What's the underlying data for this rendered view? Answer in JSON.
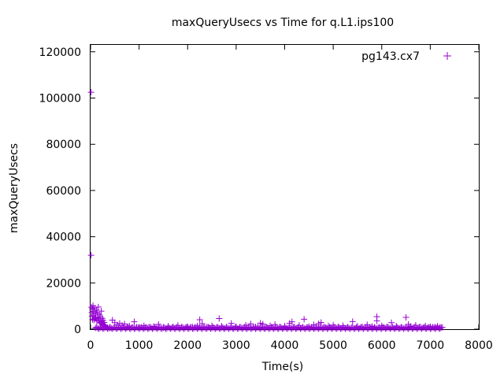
{
  "chart_data": {
    "type": "scatter",
    "title": "maxQueryUsecs vs Time for q.L1.ips100",
    "xlabel": "Time(s)",
    "ylabel": "maxQueryUsecs",
    "xlim": [
      0,
      8000
    ],
    "ylim": [
      0,
      123000
    ],
    "xticks": [
      0,
      1000,
      2000,
      3000,
      4000,
      5000,
      6000,
      7000,
      8000
    ],
    "yticks": [
      0,
      20000,
      40000,
      60000,
      80000,
      100000,
      120000
    ],
    "legend_position": "top-right",
    "marker": "+",
    "series": [
      {
        "name": "pg143.cx7",
        "color": "#9400d3",
        "points": [
          [
            10,
            102500
          ],
          [
            10,
            32000
          ],
          [
            20,
            9500
          ],
          [
            25,
            7200
          ],
          [
            30,
            5600
          ],
          [
            35,
            8800
          ],
          [
            40,
            4200
          ],
          [
            50,
            10200
          ],
          [
            55,
            6100
          ],
          [
            60,
            7700
          ],
          [
            70,
            3900
          ],
          [
            80,
            9100
          ],
          [
            90,
            5200
          ],
          [
            100,
            6800
          ],
          [
            110,
            4600
          ],
          [
            120,
            8300
          ],
          [
            130,
            3500
          ],
          [
            140,
            7100
          ],
          [
            150,
            5000
          ],
          [
            160,
            9600
          ],
          [
            170,
            4100
          ],
          [
            180,
            6200
          ],
          [
            190,
            3000
          ],
          [
            200,
            5400
          ],
          [
            210,
            2600
          ],
          [
            220,
            7800
          ],
          [
            230,
            3300
          ],
          [
            240,
            4700
          ],
          [
            250,
            2200
          ],
          [
            260,
            3800
          ],
          [
            270,
            1800
          ],
          [
            280,
            2900
          ],
          [
            290,
            1500
          ],
          [
            300,
            1200
          ],
          [
            320,
            900
          ],
          [
            350,
            700
          ],
          [
            400,
            600
          ],
          [
            450,
            3900
          ],
          [
            500,
            2800
          ],
          [
            550,
            1900
          ],
          [
            600,
            2500
          ],
          [
            650,
            1600
          ],
          [
            700,
            2300
          ],
          [
            750,
            900
          ],
          [
            800,
            1400
          ],
          [
            900,
            3200
          ],
          [
            1000,
            800
          ],
          [
            1100,
            1500
          ],
          [
            1200,
            900
          ],
          [
            1300,
            1200
          ],
          [
            1400,
            2100
          ],
          [
            1500,
            700
          ],
          [
            1600,
            1300
          ],
          [
            1700,
            1000
          ],
          [
            1800,
            1600
          ],
          [
            1900,
            800
          ],
          [
            2000,
            1100
          ],
          [
            2100,
            900
          ],
          [
            2200,
            1400
          ],
          [
            2250,
            4100
          ],
          [
            2300,
            2400
          ],
          [
            2400,
            1000
          ],
          [
            2500,
            1500
          ],
          [
            2600,
            800
          ],
          [
            2650,
            4600
          ],
          [
            2700,
            1300
          ],
          [
            2800,
            900
          ],
          [
            2900,
            2500
          ],
          [
            3000,
            1100
          ],
          [
            3100,
            800
          ],
          [
            3200,
            1700
          ],
          [
            3300,
            2300
          ],
          [
            3400,
            1000
          ],
          [
            3500,
            2600
          ],
          [
            3550,
            2200
          ],
          [
            3600,
            900
          ],
          [
            3700,
            1500
          ],
          [
            3800,
            2000
          ],
          [
            3900,
            1000
          ],
          [
            4000,
            1300
          ],
          [
            4100,
            2500
          ],
          [
            4150,
            3200
          ],
          [
            4200,
            1000
          ],
          [
            4300,
            1600
          ],
          [
            4400,
            4300
          ],
          [
            4500,
            1100
          ],
          [
            4600,
            1900
          ],
          [
            4700,
            2400
          ],
          [
            4750,
            2900
          ],
          [
            4800,
            900
          ],
          [
            4900,
            1400
          ],
          [
            5000,
            1800
          ],
          [
            5100,
            1000
          ],
          [
            5200,
            1500
          ],
          [
            5300,
            800
          ],
          [
            5400,
            3300
          ],
          [
            5500,
            1300
          ],
          [
            5600,
            1000
          ],
          [
            5700,
            1900
          ],
          [
            5800,
            1200
          ],
          [
            5900,
            5400
          ],
          [
            5900,
            3600
          ],
          [
            6000,
            1500
          ],
          [
            6100,
            1000
          ],
          [
            6200,
            2800
          ],
          [
            6300,
            1300
          ],
          [
            6400,
            900
          ],
          [
            6500,
            5100
          ],
          [
            6550,
            2100
          ],
          [
            6600,
            1200
          ],
          [
            6700,
            1700
          ],
          [
            6800,
            1000
          ],
          [
            6900,
            1400
          ],
          [
            7000,
            1100
          ],
          [
            7100,
            900
          ],
          [
            7150,
            1300
          ],
          [
            7200,
            800
          ]
        ],
        "band": {
          "x_start": 100,
          "x_end": 7250,
          "step": 25,
          "y_min": 150,
          "y_max": 900
        }
      }
    ]
  }
}
